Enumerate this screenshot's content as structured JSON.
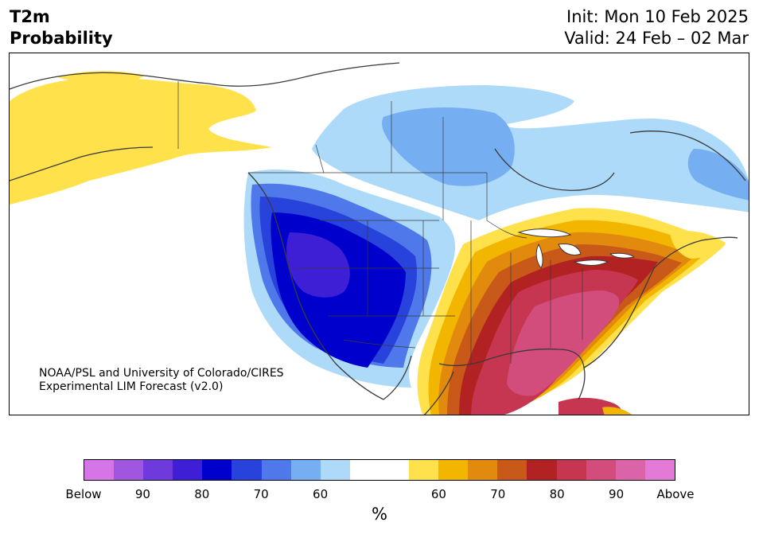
{
  "header": {
    "title_line1": "T2m",
    "title_line2": "Probability",
    "init": "Init: Mon 10 Feb 2025",
    "valid": "Valid: 24 Feb – 02 Mar"
  },
  "credit": {
    "line1": "NOAA/PSL and University of Colorado/CIRES",
    "line2": "Experimental LIM Forecast (v2.0)"
  },
  "colorbar": {
    "unit": "%",
    "colors": [
      "#d575e8",
      "#a056de",
      "#6e3adc",
      "#3e1fd5",
      "#0000cc",
      "#2842dc",
      "#4f79ea",
      "#76aef2",
      "#aedaf9",
      "#ffffff",
      "#ffffff",
      "#ffe14b",
      "#f2b500",
      "#e18a0e",
      "#c85918",
      "#b22222",
      "#c63650",
      "#d24c7c",
      "#db64a8",
      "#e47ad8"
    ],
    "tick_labels": [
      "Below",
      "90",
      "80",
      "70",
      "60",
      "60",
      "70",
      "80",
      "90",
      "Above"
    ]
  },
  "map": {
    "colors": {
      "below_90": "#3e1fd5",
      "below_80": "#0000cc",
      "below_75": "#2842dc",
      "below_70": "#4f79ea",
      "below_65": "#76aef2",
      "below_60": "#aedaf9",
      "above_55": "#ffe14b",
      "above_60": "#f2b500",
      "above_65": "#e18a0e",
      "above_70": "#c85918",
      "above_75": "#b22222",
      "above_80": "#c63650",
      "above_85": "#d24c7c"
    }
  }
}
